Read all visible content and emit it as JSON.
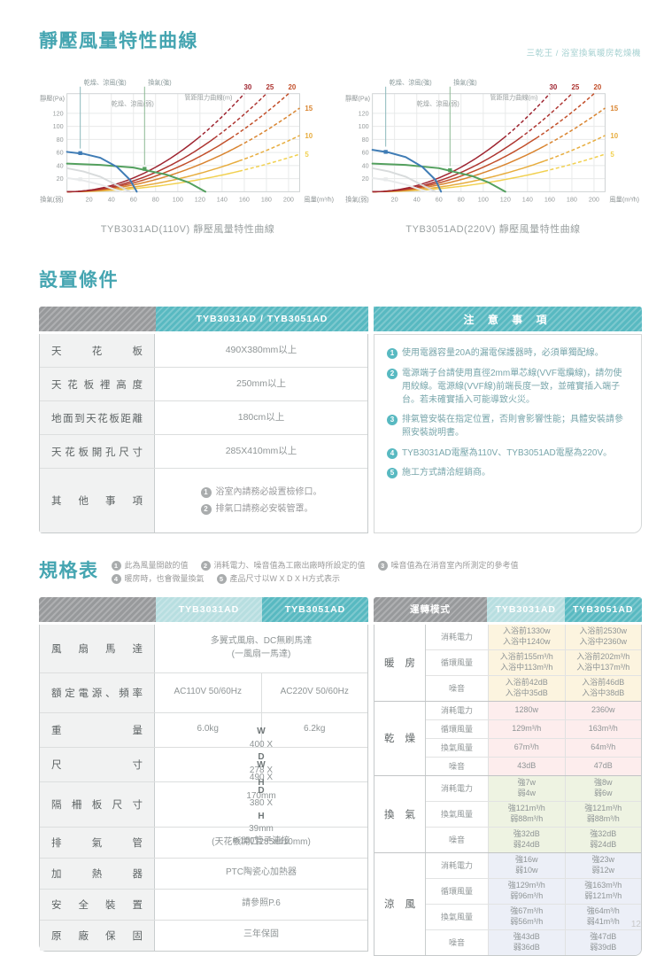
{
  "brand": "三乾王 / 浴室換氣暖房乾燥機",
  "page_number": "12",
  "curves_section": {
    "title": "靜壓風量特性曲線"
  },
  "chart_data": [
    {
      "type": "line",
      "title": "TYB3031AD(110V) 靜壓風量特性曲線",
      "xlabel": "風量(m³/h)",
      "ylabel": "靜壓(Pa)",
      "corner_label": "換氣(弱)",
      "xlim": [
        0,
        210
      ],
      "ylim": [
        0,
        150
      ],
      "xticks": [
        20,
        40,
        60,
        80,
        100,
        120,
        140,
        160,
        180,
        200
      ],
      "yticks": [
        20,
        40,
        60,
        80,
        100,
        120
      ],
      "fan_curves": [
        {
          "name": "換氣(弱)",
          "color": "#e8eaeb",
          "points": [
            [
              0,
              21
            ],
            [
              15,
              17
            ],
            [
              30,
              11
            ],
            [
              42,
              4
            ],
            [
              50,
              0
            ]
          ],
          "marker": [
            12,
            19
          ]
        },
        {
          "name": "乾燥、涼風(弱)",
          "color": "#d8dbdc",
          "points": [
            [
              0,
              36
            ],
            [
              15,
              31
            ],
            [
              30,
              23
            ],
            [
              45,
              10
            ],
            [
              57,
              0
            ]
          ]
        },
        {
          "name": "換氣(強)",
          "color": "#53a05e",
          "points": [
            [
              0,
              43
            ],
            [
              30,
              41
            ],
            [
              60,
              37
            ],
            [
              90,
              26
            ],
            [
              110,
              14
            ],
            [
              125,
              0
            ]
          ],
          "marker": [
            70,
            35
          ]
        },
        {
          "name": "乾燥、涼風(強)",
          "color": "#3f7cb5",
          "points": [
            [
              0,
              61
            ],
            [
              15,
              58
            ],
            [
              30,
              52
            ],
            [
              45,
              38
            ],
            [
              57,
              18
            ],
            [
              63,
              0
            ]
          ],
          "marker": [
            12,
            59
          ]
        }
      ],
      "resistance_curves": [
        {
          "label": "5",
          "color": "#f1d04f",
          "k": 0.0013
        },
        {
          "label": "10",
          "color": "#e7ad3e",
          "k": 0.00195
        },
        {
          "label": "15",
          "color": "#d9842f",
          "k": 0.0029
        },
        {
          "label": "20",
          "color": "#c24f2a",
          "k": 0.00375
        },
        {
          "label": "25",
          "color": "#ad3430",
          "k": 0.00463
        },
        {
          "label": "30",
          "color": "#9e2430",
          "k": 0.00586
        }
      ],
      "legend": [
        {
          "text": "乾燥、涼風(強)",
          "line_q": 12,
          "to_p": 62,
          "color": "#8bb9bc"
        },
        {
          "text": "換氣(強)",
          "line_q": 70,
          "to_p": 37,
          "color": "#8ab892"
        }
      ],
      "inline_labels": [
        {
          "text": "乾燥、涼風(弱)",
          "q": 40,
          "p": 131
        },
        {
          "text": "管距阻力曲線(m)",
          "q": 106,
          "p": 141
        }
      ]
    },
    {
      "type": "line",
      "title": "TYB3051AD(220V) 靜壓風量特性曲線",
      "xlabel": "風量(m³/h)",
      "ylabel": "靜壓(Pa)",
      "corner_label": "換氣(弱)",
      "xlim": [
        0,
        210
      ],
      "ylim": [
        0,
        150
      ],
      "xticks": [
        20,
        40,
        60,
        80,
        100,
        120,
        140,
        160,
        180,
        200
      ],
      "yticks": [
        20,
        40,
        60,
        80,
        100,
        120
      ],
      "fan_curves": [
        {
          "name": "換氣(弱)",
          "color": "#e8eaeb",
          "points": [
            [
              0,
              21
            ],
            [
              15,
              17
            ],
            [
              30,
              11
            ],
            [
              42,
              4
            ],
            [
              50,
              0
            ]
          ],
          "marker": [
            12,
            19
          ]
        },
        {
          "name": "乾燥、涼風(弱)",
          "color": "#d8dbdc",
          "points": [
            [
              0,
              36
            ],
            [
              15,
              31
            ],
            [
              30,
              23
            ],
            [
              45,
              10
            ],
            [
              57,
              0
            ]
          ]
        },
        {
          "name": "換氣(強)",
          "color": "#53a05e",
          "points": [
            [
              0,
              43
            ],
            [
              30,
              41
            ],
            [
              60,
              36
            ],
            [
              90,
              24
            ],
            [
              105,
              14
            ],
            [
              120,
              0
            ]
          ],
          "marker": [
            70,
            33
          ]
        },
        {
          "name": "乾燥、涼風(強)",
          "color": "#3f7cb5",
          "points": [
            [
              0,
              64
            ],
            [
              15,
              60
            ],
            [
              30,
              53
            ],
            [
              45,
              38
            ],
            [
              57,
              18
            ],
            [
              62,
              0
            ]
          ],
          "marker": [
            12,
            61
          ]
        }
      ],
      "resistance_curves": [
        {
          "label": "5",
          "color": "#f1d04f",
          "k": 0.0013
        },
        {
          "label": "10",
          "color": "#e7ad3e",
          "k": 0.00195
        },
        {
          "label": "15",
          "color": "#d9842f",
          "k": 0.0029
        },
        {
          "label": "20",
          "color": "#c24f2a",
          "k": 0.00375
        },
        {
          "label": "25",
          "color": "#ad3430",
          "k": 0.00463
        },
        {
          "label": "30",
          "color": "#9e2430",
          "k": 0.00586
        }
      ],
      "legend": [
        {
          "text": "乾燥、涼風(強)",
          "line_q": 12,
          "to_p": 65,
          "color": "#8bb9bc"
        },
        {
          "text": "換氣(強)",
          "line_q": 70,
          "to_p": 35,
          "color": "#8ab892"
        }
      ],
      "inline_labels": [
        {
          "text": "乾燥、涼風(弱)",
          "q": 40,
          "p": 131
        },
        {
          "text": "管距阻力曲線(m)",
          "q": 106,
          "p": 141
        }
      ]
    }
  ],
  "setup_section": {
    "title": "設置條件",
    "col_header": "TYB3031AD  /  TYB3051AD",
    "rows": [
      {
        "label": "天 花 板",
        "value": "490X380mm以上"
      },
      {
        "label": "天 花 板 裡 高 度",
        "value": "250mm以上"
      },
      {
        "label": "地面到天花板距離",
        "value": "180cm以上"
      },
      {
        "label": "天 花 板 開 孔 尺 寸",
        "value": "285X410mm以上"
      },
      {
        "label": "其 他 事 項",
        "items": [
          "浴室內請務必設置檢修口。",
          "排氣口請務必安裝管罩。"
        ]
      }
    ],
    "notice": {
      "title": "注 意 事 項",
      "items": [
        "使用電器容量20A的漏電保護器時，必須單獨配線。",
        "電源端子台請使用直徑2mm單芯線(VVF電纜線)，請勿使用絞線。電源線(VVF線)前端長度一致，並確實插入端子台。若未確實插入可能導致火災。",
        "排氣管安裝在指定位置，否則會影響性能；具體安裝請參照安裝說明書。",
        "TYB3031AD電壓為110V、TYB3051AD電壓為220V。",
        "施工方式請洽經銷商。"
      ]
    }
  },
  "spec_section": {
    "title": "規格表",
    "notes_line1": [
      {
        "n": "1",
        "t": "此為風量開啟的值"
      },
      {
        "n": "2",
        "t": "消耗電力、噪音值為工廠出廠時所設定的值"
      },
      {
        "n": "3",
        "t": "噪音值為在消音室內所測定的參考值"
      }
    ],
    "notes_line2": [
      {
        "n": "4",
        "t": "暖房時，也會微量換氣"
      },
      {
        "n": "5",
        "t": "產品尺寸以W X D X H方式表示"
      }
    ],
    "models": [
      "TYB3031AD",
      "TYB3051AD"
    ],
    "mode_header": "運轉模式",
    "left_rows": [
      {
        "label": "風 扇 馬 達",
        "span": true,
        "value": "多翼式風扇、DC無刷馬達\n(一風扇一馬達)"
      },
      {
        "label": "額定電源、頻率",
        "span": false,
        "v1": "AC110V 50/60Hz",
        "v2": "AC220V 50/60Hz"
      },
      {
        "label": "重 量",
        "span": false,
        "v1": "6.0kg",
        "v2": "6.2kg"
      },
      {
        "label": "尺 寸",
        "span": true,
        "value": "W400 X D278 X H170mm"
      },
      {
        "label": "隔 柵 板 尺 寸",
        "span": true,
        "value": "W490 X D380 X H39mm\n(天花板開口285x410mm)"
      },
      {
        "label": "排 氣 管",
        "span": true,
        "value": "Φ100管子連接"
      },
      {
        "label": "加 熱 器",
        "span": true,
        "value": "PTC陶瓷心加熱器"
      },
      {
        "label": "安 全 裝 置",
        "span": true,
        "value": "請參照P.6"
      },
      {
        "label": "原 廠 保 固",
        "span": true,
        "value": "三年保固"
      }
    ],
    "groups": [
      {
        "mode": "暖 房",
        "bg": "warm",
        "rows": [
          {
            "label": "消耗電力",
            "v1": "入浴前1330w\n入浴中1240w",
            "v2": "入浴前2530w\n入浴中2360w"
          },
          {
            "label": "循環風量",
            "v1": "入浴前155m³/h\n入浴中113m³/h",
            "v2": "入浴前202m³/h\n入浴中137m³/h"
          },
          {
            "label": "噪音",
            "v1": "入浴前42dB\n入浴中35dB",
            "v2": "入浴前46dB\n入浴中38dB"
          }
        ]
      },
      {
        "mode": "乾 燥",
        "bg": "dry",
        "rows": [
          {
            "label": "消耗電力",
            "v1": "1280w",
            "v2": "2360w"
          },
          {
            "label": "循環風量",
            "v1": "129m³/h",
            "v2": "163m³/h"
          },
          {
            "label": "換氣風量",
            "v1": "67m³/h",
            "v2": "64m³/h"
          },
          {
            "label": "噪音",
            "v1": "43dB",
            "v2": "47dB"
          }
        ]
      },
      {
        "mode": "換 氣",
        "bg": "vent",
        "rows": [
          {
            "label": "消耗電力",
            "v1": "強7w\n弱4w",
            "v2": "強8w\n弱6w"
          },
          {
            "label": "換氣風量",
            "v1": "強121m³/h\n弱88m³/h",
            "v2": "強121m³/h\n弱88m³/h"
          },
          {
            "label": "噪音",
            "v1": "強32dB\n弱24dB",
            "v2": "強32dB\n弱24dB"
          }
        ]
      },
      {
        "mode": "涼 風",
        "bg": "cool",
        "rows": [
          {
            "label": "消耗電力",
            "v1": "強16w\n弱10w",
            "v2": "強23w\n弱12w"
          },
          {
            "label": "循環風量",
            "v1": "強129m³/h\n弱96m³/h",
            "v2": "強163m³/h\n弱121m³/h"
          },
          {
            "label": "換氣風量",
            "v1": "強67m³/h\n弱56m³/h",
            "v2": "強64m³/h\n弱41m³/h"
          },
          {
            "label": "噪音",
            "v1": "強43dB\n弱36dB",
            "v2": "強47dB\n弱39dB"
          }
        ]
      }
    ]
  }
}
